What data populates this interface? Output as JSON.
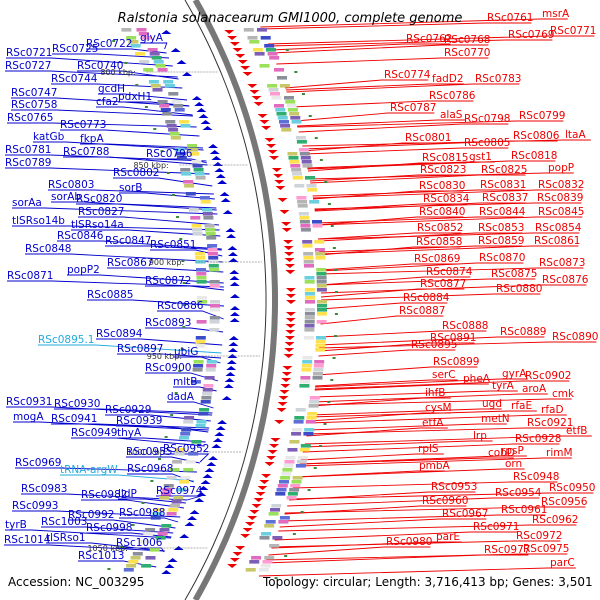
{
  "title": "Ralstonia solanacearum GMI1000, complete genome",
  "accession": "Accession: NC_003295",
  "topology": "Topology: circular; Length: 3,716,413 bp; Genes: 3,501",
  "colors": {
    "left": "#0000cc",
    "right": "#ee0000",
    "rna": "#22aadd",
    "backbone": "#777777"
  },
  "ticks": [
    "800 kbp",
    "850 kbp",
    "900 kbp",
    "950 kbp",
    "1000 kbp",
    "1050 kbp"
  ],
  "left_labels": [
    "RSc0722",
    "glyA",
    "RSc0721",
    "RSc0725",
    "RSc0727",
    "RSc0740",
    "RSc0744",
    "gcdH",
    "RSc0747",
    "pdxH1",
    "RSc0758",
    "cfa2",
    "RSc0765",
    "RSc0773",
    "katGb",
    "fkpA",
    "RSc0781",
    "RSc0788",
    "RSc0796",
    "RSc0789",
    "RSc0802",
    "RSc0803",
    "sorB",
    "sorAb",
    "RSc0820",
    "sorAa",
    "RSc0827",
    "tlSRso14b",
    "tlSRso14a",
    "RSc0846",
    "RSc0847",
    "RSc0851",
    "RSc0848",
    "RSc0867",
    "RSc0871",
    "popP2",
    "RSc0872",
    "RSc0885",
    "RSc0886",
    "RSc0893",
    "RSc0894",
    "RSc0895.1",
    "RSc0897",
    "ubiG",
    "RSc0900",
    "mltB",
    "dadA",
    "RSc0931",
    "RSc0930",
    "RSc0929",
    "mogA",
    "RSc0941",
    "RSc0939",
    "RSc0949",
    "thyA",
    "RSc0955",
    "RSc0952",
    "RSc0969",
    "tRNA-argW",
    "RSc0968",
    "RSc0974",
    "RSc0983",
    "RSc0982",
    "lldP",
    "RSc0993",
    "RSc0992",
    "RSc0988",
    "RSc1003",
    "tyrB",
    "RSc0998",
    "RSc1014",
    "tlSRso1",
    "RSc1006",
    "RSc1013"
  ],
  "right_labels": [
    "RSc0761",
    "msrA",
    "RSc0762",
    "RSc0768",
    "RSc0769",
    "RSc0771",
    "RSc0770",
    "RSc0774",
    "fadD2",
    "RSc0783",
    "RSc0786",
    "RSc0787",
    "alaS",
    "RSc0798",
    "RSc0799",
    "RSc0801",
    "RSc0805",
    "RSc0806",
    "ltaA",
    "RSc0815",
    "gst1",
    "RSc0818",
    "RSc0823",
    "RSc0825",
    "popP",
    "RSc0830",
    "RSc0831",
    "RSc0832",
    "RSc0834",
    "RSc0837",
    "RSc0839",
    "RSc0840",
    "RSc0844",
    "RSc0845",
    "RSc0852",
    "RSc0853",
    "RSc0854",
    "RSc0858",
    "RSc0859",
    "RSc0861",
    "RSc0869",
    "RSc0870",
    "RSc0873",
    "RSc0874",
    "RSc0875",
    "RSc0877",
    "RSc0880",
    "RSc0876",
    "RSc0884",
    "RSc0887",
    "RSc0888",
    "RSc0889",
    "RSc0890",
    "RSc0891",
    "RSc0895",
    "RSc0899",
    "serC",
    "gyrA",
    "pheA",
    "RSc0902",
    "tyrA",
    "aroA",
    "cmk",
    "ihfB",
    "ugd",
    "cysM",
    "rfaE",
    "rfaD",
    "metN",
    "etfA",
    "RSc0921",
    "etfB",
    "lrp",
    "RSc0928",
    "rplS",
    "rpsP",
    "cobD",
    "rimM",
    "pmbA",
    "orn",
    "RSc0948",
    "RSc0953",
    "RSc0950",
    "RSc0954",
    "RSc0956",
    "RSc0960",
    "RSc0961",
    "RSc0967",
    "RSc0962",
    "RSc0971",
    "RSc0972",
    "RSc0980",
    "parE",
    "RSc0977",
    "RSc0975",
    "parC"
  ]
}
